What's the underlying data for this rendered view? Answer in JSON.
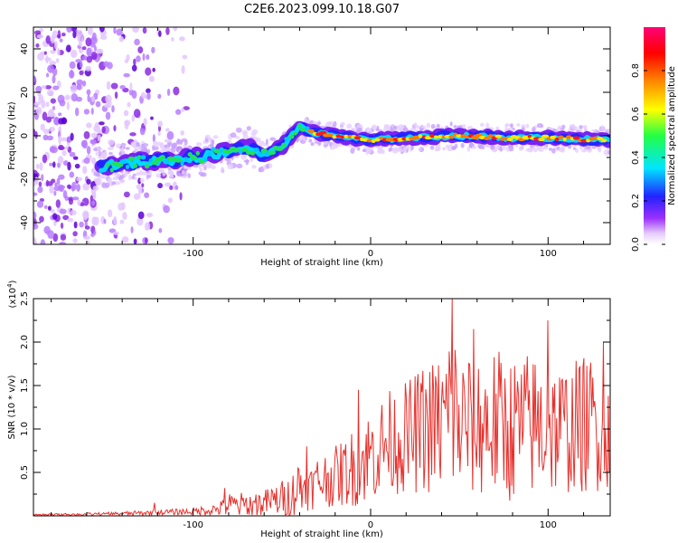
{
  "chart_data": [
    {
      "type": "heatmap",
      "title": "C2E6.2023.099.10.18.G07",
      "xlabel": "Height of straight line (km)",
      "ylabel": "Frequency (Hz)",
      "xlim": [
        -190,
        135
      ],
      "ylim": [
        -50,
        50
      ],
      "xticks": [
        -100,
        0,
        100
      ],
      "xtick_labels": [
        "-100",
        "0",
        "100"
      ],
      "yticks": [
        -40,
        -20,
        0,
        20,
        40
      ],
      "ytick_labels": [
        "-40",
        "-20",
        "0",
        "20",
        "40"
      ],
      "colorbar": {
        "label": "Normalized spectral amplitude",
        "range": [
          0,
          1
        ],
        "ticks": [
          0.0,
          0.2,
          0.4,
          0.6,
          0.8
        ],
        "tick_labels": [
          "0.0",
          "0.2",
          "0.4",
          "0.6",
          "0.8"
        ],
        "colormap": "rainbow (white-purple-blue-cyan-green-yellow-orange-red-magenta)"
      },
      "trace": {
        "description": "Spectral line centred near 0 Hz from ~-150 km; scattered noise below ~-100 km",
        "x": [
          -150,
          -130,
          -110,
          -90,
          -70,
          -60,
          -50,
          -40,
          -30,
          -20,
          0,
          20,
          50,
          80,
          100,
          135
        ],
        "y": [
          -14,
          -12,
          -11,
          -9,
          -5,
          -9,
          -5,
          4,
          1,
          0,
          -2,
          -1,
          0,
          -1,
          -1,
          -2
        ],
        "peak_amplitude_from_km": -35
      }
    },
    {
      "type": "line",
      "xlabel": "Height of straight line (km)",
      "ylabel": "SNR (10 * v/v)",
      "y_multiplier": "(x10^4)",
      "y_multiplier_base": "(x10",
      "y_multiplier_exp": "4",
      "y_multiplier_close": ")",
      "xlim": [
        -190,
        135
      ],
      "ylim": [
        0,
        2.5
      ],
      "xticks": [
        -100,
        0,
        100
      ],
      "xtick_labels": [
        "-100",
        "0",
        "100"
      ],
      "yticks": [
        0.5,
        1.0,
        1.5,
        2.0,
        2.5
      ],
      "ytick_labels": [
        "0.5",
        "1.0",
        "1.5",
        "2.0",
        "2.5"
      ],
      "color": "#e8302c",
      "envelope": {
        "x": [
          -190,
          -150,
          -130,
          -120,
          -100,
          -85,
          -80,
          -70,
          -60,
          -45,
          -40,
          -35,
          -30,
          -20,
          -10,
          0,
          10,
          20,
          30,
          40,
          46,
          50,
          60,
          70,
          80,
          90,
          100,
          110,
          120,
          135
        ],
        "base": [
          0.01,
          0.02,
          0.03,
          0.04,
          0.05,
          0.08,
          0.12,
          0.12,
          0.15,
          0.22,
          0.35,
          0.3,
          0.4,
          0.45,
          0.55,
          0.7,
          0.85,
          0.9,
          1.0,
          1.05,
          1.1,
          1.05,
          1.05,
          1.05,
          1.0,
          1.05,
          1.0,
          1.0,
          1.05,
          1.1
        ],
        "amp": [
          0.01,
          0.02,
          0.03,
          0.03,
          0.04,
          0.08,
          0.15,
          0.15,
          0.15,
          0.25,
          0.35,
          0.25,
          0.3,
          0.35,
          0.45,
          0.55,
          0.6,
          0.65,
          0.75,
          0.85,
          1.35,
          0.85,
          0.85,
          0.9,
          0.85,
          0.85,
          0.8,
          0.75,
          0.8,
          0.8
        ]
      },
      "peaks": [
        {
          "x": -122,
          "y": 0.15
        },
        {
          "x": -82,
          "y": 0.32
        },
        {
          "x": -36,
          "y": 0.8
        },
        {
          "x": -7,
          "y": 1.45
        },
        {
          "x": 46,
          "y": 2.5
        },
        {
          "x": 58,
          "y": 2.15
        },
        {
          "x": 100,
          "y": 2.25
        },
        {
          "x": 131,
          "y": 2.0
        }
      ]
    }
  ]
}
